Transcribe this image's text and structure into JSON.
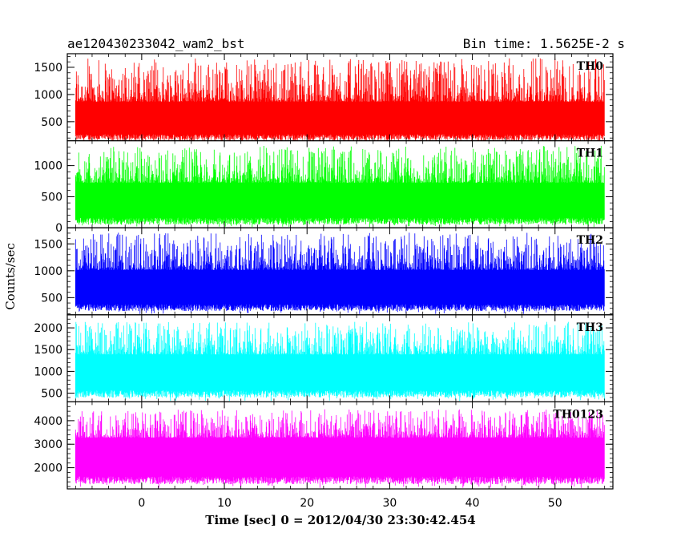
{
  "header": {
    "left_title": "ae120430233042_wam2_bst",
    "right_title": "Bin time: 1.5625E-2 s"
  },
  "chart_data": {
    "type": "line",
    "xlabel": "Time [sec] 0 = 2012/04/30 23:30:42.454",
    "ylabel": "Counts/sec",
    "xlim": [
      -9,
      57
    ],
    "x_ticks": [
      0,
      10,
      20,
      30,
      40,
      50
    ],
    "x_ticklabels": [
      "0",
      "10",
      "20",
      "30",
      "40",
      "50"
    ],
    "x_data_range": [
      -8,
      56
    ],
    "panels": [
      {
        "label": "TH0",
        "color": "#ff0000",
        "ylim": [
          150,
          1750
        ],
        "y_ticks": [
          500,
          1000,
          1500
        ],
        "y_ticklabels": [
          "500",
          "1000",
          "1500"
        ],
        "band_low": 150,
        "band_high": 950,
        "spike_max": 1750
      },
      {
        "label": "TH1",
        "color": "#00ff00",
        "ylim": [
          0,
          1400
        ],
        "y_ticks": [
          0,
          500,
          1000
        ],
        "y_ticklabels": [
          "0",
          "500",
          "1000"
        ],
        "band_low": 50,
        "band_high": 800,
        "spike_max": 1400
      },
      {
        "label": "TH2",
        "color": "#0000ff",
        "ylim": [
          180,
          1800
        ],
        "y_ticks": [
          500,
          1000,
          1500
        ],
        "y_ticklabels": [
          "500",
          "1000",
          "1500"
        ],
        "band_low": 250,
        "band_high": 1100,
        "spike_max": 1800
      },
      {
        "label": "TH3",
        "color": "#00ffff",
        "ylim": [
          300,
          2300
        ],
        "y_ticks": [
          500,
          1000,
          1500,
          2000
        ],
        "y_ticklabels": [
          "500",
          "1000",
          "1500",
          "2000"
        ],
        "band_low": 400,
        "band_high": 1500,
        "spike_max": 2250
      },
      {
        "label": "TH0123",
        "color": "#ff00ff",
        "ylim": [
          1100,
          4800
        ],
        "y_ticks": [
          2000,
          3000,
          4000
        ],
        "y_ticklabels": [
          "2000",
          "3000",
          "4000"
        ],
        "band_low": 1300,
        "band_high": 3500,
        "spike_max": 4700
      }
    ]
  }
}
